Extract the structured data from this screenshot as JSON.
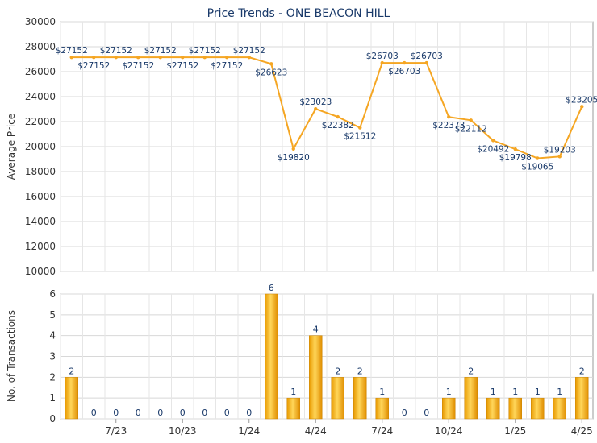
{
  "chart_data": [
    {
      "type": "line",
      "title": "Price Trends - ONE BEACON HILL",
      "ylabel": "Average Price",
      "ylim": [
        10000,
        30000
      ],
      "yticks": [
        "10000",
        "12000",
        "14000",
        "16000",
        "18000",
        "20000",
        "22000",
        "24000",
        "26000",
        "28000",
        "30000"
      ],
      "grid": true,
      "line_color": "#f5a623",
      "label_color": "#1a3a6a",
      "points": [
        {
          "i": 0,
          "y": 27152,
          "label": "$27152"
        },
        {
          "i": 1,
          "y": 27152,
          "label": "$27152"
        },
        {
          "i": 2,
          "y": 27152,
          "label": "$27152"
        },
        {
          "i": 3,
          "y": 27152,
          "label": "$27152"
        },
        {
          "i": 4,
          "y": 27152,
          "label": "$27152"
        },
        {
          "i": 5,
          "y": 27152,
          "label": "$27152"
        },
        {
          "i": 6,
          "y": 27152,
          "label": "$27152"
        },
        {
          "i": 7,
          "y": 27152,
          "label": "$27152"
        },
        {
          "i": 8,
          "y": 27152,
          "label": "$27152"
        },
        {
          "i": 9,
          "y": 26623,
          "label": "$26623"
        },
        {
          "i": 10,
          "y": 19820,
          "label": "$19820"
        },
        {
          "i": 11,
          "y": 23023,
          "label": "$23023"
        },
        {
          "i": 12,
          "y": 22382,
          "label": "$22382"
        },
        {
          "i": 13,
          "y": 21512,
          "label": "$21512"
        },
        {
          "i": 14,
          "y": 26703,
          "label": "$26703"
        },
        {
          "i": 15,
          "y": 26703,
          "label": "$26703"
        },
        {
          "i": 16,
          "y": 26703,
          "label": "$26703"
        },
        {
          "i": 17,
          "y": 22373,
          "label": "$22373"
        },
        {
          "i": 18,
          "y": 22112,
          "label": "$22112"
        },
        {
          "i": 19,
          "y": 20492,
          "label": "$20492"
        },
        {
          "i": 20,
          "y": 19798,
          "label": "$19798"
        },
        {
          "i": 21,
          "y": 19065,
          "label": "$19065"
        },
        {
          "i": 22,
          "y": 19203,
          "label": "$19203"
        },
        {
          "i": 23,
          "y": 23205,
          "label": "$23205"
        }
      ]
    },
    {
      "type": "bar",
      "ylabel": "No. of Transactions",
      "ylim": [
        0,
        6
      ],
      "yticks": [
        "0",
        "1",
        "2",
        "3",
        "4",
        "5",
        "6"
      ],
      "grid": true,
      "bar_color": "#f0a500",
      "values": [
        2,
        0,
        0,
        0,
        0,
        0,
        0,
        0,
        0,
        6,
        1,
        4,
        2,
        2,
        1,
        0,
        0,
        1,
        2,
        1,
        1,
        1,
        1,
        2
      ],
      "xticks": [
        {
          "i": 2,
          "label": "7/23"
        },
        {
          "i": 5,
          "label": "10/23"
        },
        {
          "i": 8,
          "label": "1/24"
        },
        {
          "i": 11,
          "label": "4/24"
        },
        {
          "i": 14,
          "label": "7/24"
        },
        {
          "i": 17,
          "label": "10/24"
        },
        {
          "i": 20,
          "label": "1/25"
        },
        {
          "i": 23,
          "label": "4/25"
        }
      ]
    }
  ]
}
